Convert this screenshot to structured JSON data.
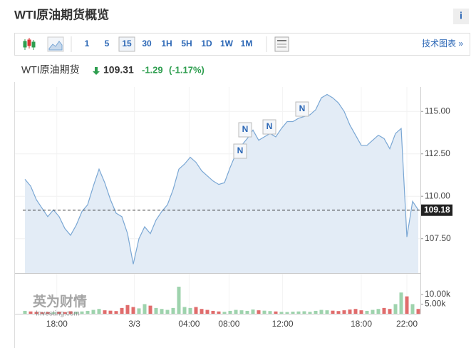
{
  "header": {
    "title": "WTI原油期货概览",
    "info": "i"
  },
  "toolbar": {
    "intervals": [
      "1",
      "5",
      "15",
      "30",
      "1H",
      "5H",
      "1D",
      "1W",
      "1M"
    ],
    "selected_interval": 2,
    "tech_link": "技术图表 »"
  },
  "quote": {
    "name": "WTI原油期货",
    "price": "109.31",
    "change": "-1.29",
    "change_percent": "(-1.17%)"
  },
  "watermark": {
    "brand": "英为财情",
    "site": "Investing.com"
  },
  "chart_data": {
    "type": "area",
    "values": [
      111.0,
      110.6,
      109.8,
      109.3,
      108.8,
      109.2,
      108.8,
      108.1,
      107.7,
      108.3,
      109.1,
      109.5,
      110.6,
      111.6,
      110.8,
      109.8,
      109.0,
      108.8,
      107.8,
      106.0,
      107.5,
      108.2,
      107.8,
      108.6,
      109.1,
      109.5,
      110.4,
      111.6,
      111.9,
      112.3,
      112.0,
      111.5,
      111.2,
      110.9,
      110.7,
      110.8,
      111.7,
      112.5,
      113.0,
      113.4,
      113.9,
      113.3,
      113.5,
      113.7,
      113.5,
      114.0,
      114.4,
      114.4,
      114.6,
      114.7,
      114.8,
      115.1,
      115.8,
      116.0,
      115.8,
      115.5,
      115.0,
      114.2,
      113.6,
      113.0,
      113.0,
      113.3,
      113.6,
      113.4,
      112.8,
      113.7,
      114.0,
      107.6,
      109.7,
      109.2
    ],
    "volumes": [
      1500,
      1200,
      1000,
      800,
      900,
      700,
      1100,
      900,
      1300,
      1000,
      1200,
      1500,
      2000,
      2500,
      1800,
      1600,
      1400,
      3000,
      4500,
      3500,
      2800,
      5000,
      4200,
      3000,
      2500,
      2000,
      3000,
      14000,
      3500,
      3000,
      3500,
      2500,
      2000,
      1500,
      1200,
      1000,
      1500,
      2000,
      1800,
      1500,
      2200,
      1800,
      1600,
      1400,
      1200,
      1000,
      900,
      1100,
      1200,
      1300,
      1000,
      1500,
      2000,
      1800,
      1600,
      1400,
      1800,
      2200,
      2500,
      1800,
      1500,
      2000,
      2500,
      3000,
      2500,
      5000,
      11000,
      9000,
      5000,
      2500
    ],
    "color": "#7aa7d4",
    "fill": "#e3ecf6",
    "up_color": "#9ed3ad",
    "down_color": "#e06c6c",
    "xlim": [
      0,
      69
    ],
    "xticks": [
      {
        "value": 5.6,
        "label": "18:00"
      },
      {
        "value": 19.2,
        "label": "3/3"
      },
      {
        "value": 28.8,
        "label": "04:00"
      },
      {
        "value": 35.8,
        "label": "08:00"
      },
      {
        "value": 45.2,
        "label": "12:00"
      },
      {
        "value": 59,
        "label": "18:00"
      },
      {
        "value": 67,
        "label": "22:00"
      }
    ],
    "ylim": [
      105.47,
      116.44
    ],
    "yticks": [
      {
        "value": 107.5,
        "label": "107.50"
      },
      {
        "value": 110,
        "label": "110.00"
      },
      {
        "value": 112.5,
        "label": "112.50"
      },
      {
        "value": 115,
        "label": "115.00"
      }
    ],
    "y2lim": [
      0,
      15500
    ],
    "y2ticks": [
      {
        "value": 5000,
        "label": "5.00k"
      },
      {
        "value": 10000,
        "label": "10.00k"
      }
    ],
    "last_price": 109.18
  }
}
